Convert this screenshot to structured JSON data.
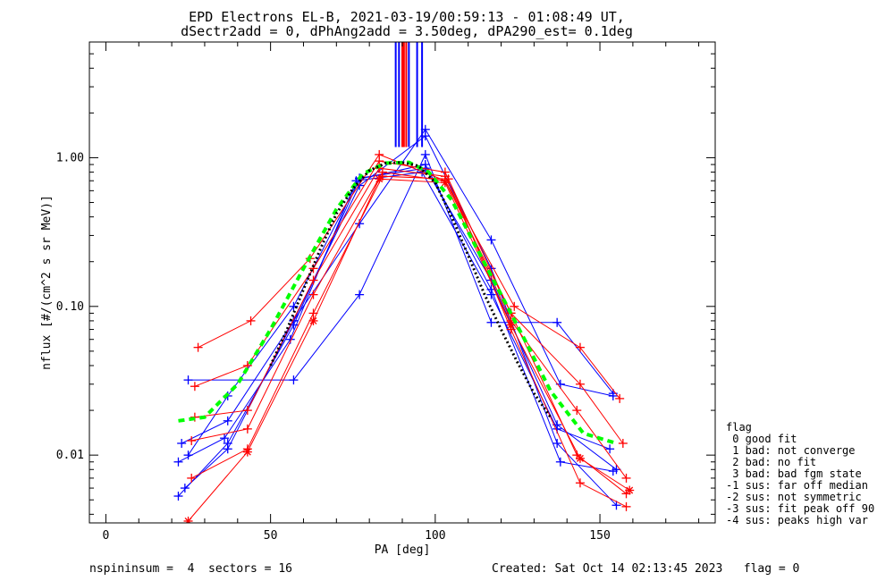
{
  "title_line1": "EPD Electrons EL-B, 2021-03-19/00:59:13 - 01:08:49 UT,",
  "title_line2": "dSectr2add = 0, dPhAng2add = 3.50deg, dPA290_est=   0.1deg",
  "footer": {
    "left": "nspininsum =  4  sectors = 16",
    "right": "Created: Sat Oct 14 02:13:45 2023   flag = 0"
  },
  "legend": {
    "title": "flag",
    "items": [
      " 0 good fit",
      " 1 bad: not converge",
      " 2 bad: no fit",
      " 3 bad: bad fgm state",
      "-1 sus: far off median",
      "-2 sus: not symmetric",
      "-3 sus: fit peak off 90",
      "-4 sus: peaks high var"
    ]
  },
  "colors": {
    "blue": "#0000ff",
    "red": "#ff0000",
    "green": "#00ff00",
    "black": "#000000"
  },
  "chart_data": {
    "type": "line",
    "title": "EPD Electrons EL-B, 2021-03-19/00:59:13 - 01:08:49 UT,",
    "xlabel": "PA [deg]",
    "ylabel": "nflux [#/(cm^2 s sr MeV)]",
    "xlim": [
      -5,
      185
    ],
    "ylim": [
      0.0035,
      6.0
    ],
    "yscale": "log",
    "xticks": [
      0,
      50,
      100,
      150
    ],
    "xtick_labels": [
      "0",
      "50",
      "100",
      "150"
    ],
    "yticks": [
      0.01,
      0.1,
      1.0
    ],
    "ytick_labels": [
      "0.01",
      "0.10",
      "1.00"
    ],
    "grid": false,
    "vertical_lines": [
      {
        "x": 88.0,
        "color": "blue"
      },
      {
        "x": 89.0,
        "color": "blue"
      },
      {
        "x": 90.0,
        "color": "red"
      },
      {
        "x": 90.5,
        "color": "red"
      },
      {
        "x": 91.2,
        "color": "red"
      },
      {
        "x": 92.0,
        "color": "blue"
      },
      {
        "x": 94.5,
        "color": "blue"
      },
      {
        "x": 96.0,
        "color": "blue"
      }
    ],
    "vertical_lines_ymin": 1.18,
    "series": [
      {
        "color": "blue",
        "marker": "+",
        "x": [
          25,
          57,
          77,
          97,
          117,
          137,
          154
        ],
        "y": [
          0.032,
          0.032,
          0.12,
          1.05,
          0.078,
          0.078,
          0.026
        ]
      },
      {
        "color": "blue",
        "marker": "+",
        "x": [
          23,
          37,
          57,
          77,
          97,
          117,
          138,
          154
        ],
        "y": [
          0.012,
          0.017,
          0.08,
          0.36,
          1.55,
          0.28,
          0.03,
          0.025
        ]
      },
      {
        "color": "blue",
        "marker": "+",
        "x": [
          22,
          36,
          56,
          76,
          96,
          117,
          137,
          153
        ],
        "y": [
          0.009,
          0.013,
          0.06,
          0.7,
          0.8,
          0.12,
          0.015,
          0.011
        ]
      },
      {
        "color": "blue",
        "marker": "+",
        "x": [
          22,
          37,
          57,
          77,
          97,
          117,
          138,
          154
        ],
        "y": [
          0.0053,
          0.012,
          0.075,
          0.72,
          0.9,
          0.13,
          0.009,
          0.0078
        ]
      },
      {
        "color": "blue",
        "marker": "+",
        "x": [
          24,
          37,
          57,
          77,
          97,
          117,
          137,
          155
        ],
        "y": [
          0.006,
          0.011,
          0.08,
          0.65,
          1.4,
          0.18,
          0.012,
          0.0046
        ]
      },
      {
        "color": "blue",
        "marker": "+",
        "x": [
          25,
          37,
          57,
          77,
          97,
          117,
          137,
          155
        ],
        "y": [
          0.01,
          0.025,
          0.1,
          0.73,
          0.85,
          0.15,
          0.016,
          0.008
        ]
      },
      {
        "color": "red",
        "marker": "+",
        "x": [
          28,
          44,
          62,
          83,
          103,
          124,
          144,
          156
        ],
        "y": [
          0.053,
          0.08,
          0.21,
          1.05,
          0.7,
          0.1,
          0.053,
          0.024
        ]
      },
      {
        "color": "red",
        "marker": "+",
        "x": [
          27,
          43,
          63,
          83,
          103,
          123,
          144,
          157
        ],
        "y": [
          0.029,
          0.04,
          0.18,
          0.95,
          0.8,
          0.09,
          0.03,
          0.012
        ]
      },
      {
        "color": "red",
        "marker": "+",
        "x": [
          27,
          43,
          63,
          83,
          103,
          123,
          143,
          158
        ],
        "y": [
          0.018,
          0.02,
          0.15,
          0.85,
          0.75,
          0.08,
          0.02,
          0.007
        ]
      },
      {
        "color": "red",
        "marker": "+",
        "x": [
          26,
          43,
          63,
          84,
          103,
          123,
          143,
          158
        ],
        "y": [
          0.0125,
          0.015,
          0.12,
          0.8,
          0.7,
          0.09,
          0.01,
          0.0055
        ]
      },
      {
        "color": "red",
        "marker": "+",
        "x": [
          26,
          43,
          63,
          84,
          104,
          123,
          144,
          158
        ],
        "y": [
          0.007,
          0.011,
          0.09,
          0.75,
          0.72,
          0.07,
          0.0065,
          0.0045
        ]
      },
      {
        "color": "red",
        "marker": "*",
        "x": [
          25,
          43,
          63,
          83,
          103,
          123,
          144,
          159
        ],
        "y": [
          0.0036,
          0.0105,
          0.08,
          0.72,
          0.68,
          0.075,
          0.0095,
          0.0058
        ]
      },
      {
        "color": "green",
        "style": "dashed",
        "width": 4,
        "marker": "none",
        "x": [
          22,
          30,
          40,
          50,
          60,
          70,
          78,
          85,
          92,
          98,
          105,
          112,
          120,
          128,
          135,
          145,
          155
        ],
        "y": [
          0.017,
          0.018,
          0.03,
          0.07,
          0.18,
          0.45,
          0.78,
          0.92,
          0.93,
          0.8,
          0.52,
          0.26,
          0.12,
          0.055,
          0.027,
          0.014,
          0.012
        ]
      },
      {
        "color": "black",
        "style": "dotted",
        "width": 3,
        "marker": "none",
        "x": [
          50,
          55,
          60,
          65,
          70,
          75,
          80,
          85,
          90,
          95,
          100,
          105,
          110,
          115,
          120,
          125,
          130,
          135
        ],
        "y": [
          0.04,
          0.07,
          0.13,
          0.24,
          0.42,
          0.62,
          0.82,
          0.92,
          0.93,
          0.88,
          0.68,
          0.4,
          0.22,
          0.12,
          0.07,
          0.042,
          0.026,
          0.018
        ]
      }
    ]
  }
}
